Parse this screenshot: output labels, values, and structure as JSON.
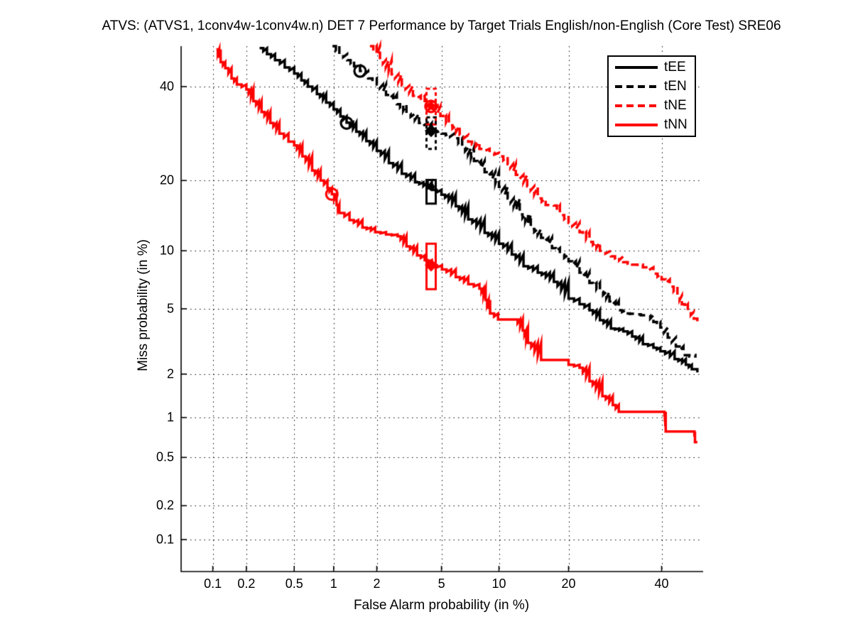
{
  "title": "ATVS: (ATVS1, 1conv4w-1conv4w.n) DET 7 Performance by Target Trials English/non-English (Core Test) SRE06",
  "legend": {
    "items": [
      "tEE",
      "tEN",
      "tNE",
      "tNN"
    ]
  },
  "chart_data": {
    "type": "line",
    "subtype": "DET-curve (normal-deviate / probit scale on both axes)",
    "title": "ATVS: (ATVS1, 1conv4w-1conv4w.n) DET 7 Performance by Target Trials English/non-English (Core Test) SRE06",
    "xlabel": "False Alarm probability (in %)",
    "ylabel": "Miss probability (in %)",
    "x_ticks": [
      0.1,
      0.2,
      0.5,
      1,
      2,
      5,
      10,
      20,
      40
    ],
    "y_ticks": [
      0.1,
      0.2,
      0.5,
      1,
      2,
      5,
      10,
      20,
      40
    ],
    "axis_range_percent": [
      0.05,
      50
    ],
    "grid": "dotted",
    "legend_position": "top-right",
    "series": [
      {
        "name": "tEE",
        "color": "#000000",
        "dash": "solid",
        "points": [
          [
            0.26,
            49.5
          ],
          [
            0.3,
            48
          ],
          [
            0.35,
            46.5
          ],
          [
            0.42,
            44.7
          ],
          [
            0.5,
            43.2
          ],
          [
            0.57,
            41.5
          ],
          [
            0.64,
            40
          ],
          [
            0.75,
            38.2
          ],
          [
            0.88,
            36.2
          ],
          [
            1.0,
            34.6
          ],
          [
            1.12,
            33
          ],
          [
            1.24,
            31.6
          ],
          [
            1.45,
            29.6
          ],
          [
            1.7,
            27.6
          ],
          [
            2.0,
            25.6
          ],
          [
            2.4,
            23.2
          ],
          [
            2.9,
            21.2
          ],
          [
            3.5,
            19.7
          ],
          [
            4.4,
            18.4
          ],
          [
            5.0,
            17.6
          ],
          [
            6.0,
            15.8
          ],
          [
            7.0,
            13.9
          ],
          [
            8.5,
            12.1
          ],
          [
            10.0,
            10.8
          ],
          [
            11.5,
            9.6
          ],
          [
            13.0,
            8.4
          ],
          [
            15.0,
            7.8
          ],
          [
            17.5,
            7.0
          ],
          [
            20.0,
            5.7
          ],
          [
            22.0,
            5.3
          ],
          [
            23.9,
            4.9
          ],
          [
            26.0,
            4.3
          ],
          [
            28.3,
            3.85
          ],
          [
            31.0,
            3.7
          ],
          [
            33.0,
            3.45
          ],
          [
            35.5,
            3.1
          ],
          [
            38.0,
            2.95
          ],
          [
            39.7,
            2.8
          ],
          [
            43.2,
            2.5
          ],
          [
            46.0,
            2.3
          ],
          [
            47.5,
            2.15
          ],
          [
            48.9,
            2.05
          ]
        ]
      },
      {
        "name": "tEN",
        "color": "#000000",
        "dash": "dashed",
        "points": [
          [
            0.98,
            50
          ],
          [
            1.1,
            48
          ],
          [
            1.25,
            46.5
          ],
          [
            1.4,
            45
          ],
          [
            1.54,
            43.8
          ],
          [
            1.75,
            42
          ],
          [
            2.0,
            40.5
          ],
          [
            2.3,
            38
          ],
          [
            2.7,
            35.8
          ],
          [
            3.1,
            33.6
          ],
          [
            3.7,
            31.5
          ],
          [
            4.4,
            29.8
          ],
          [
            5.0,
            29.2
          ],
          [
            5.9,
            28.2
          ],
          [
            6.5,
            26.2
          ],
          [
            7.5,
            23.6
          ],
          [
            8.5,
            21.5
          ],
          [
            10.0,
            18.9
          ],
          [
            11.0,
            17.0
          ],
          [
            12.5,
            14.6
          ],
          [
            14.0,
            12.6
          ],
          [
            15.5,
            11.5
          ],
          [
            17.2,
            10.3
          ],
          [
            18.5,
            9.6
          ],
          [
            20.0,
            8.9
          ],
          [
            22.0,
            7.8
          ],
          [
            23.9,
            6.9
          ],
          [
            26.0,
            6.2
          ],
          [
            28.0,
            5.5
          ],
          [
            30.0,
            4.9
          ],
          [
            31.5,
            4.7
          ],
          [
            33.5,
            4.65
          ],
          [
            35.0,
            4.6
          ],
          [
            36.5,
            4.6
          ],
          [
            38.0,
            4.2
          ],
          [
            39.7,
            3.9
          ],
          [
            41.5,
            3.4
          ],
          [
            43.5,
            3.0
          ],
          [
            45.4,
            2.65
          ],
          [
            48.4,
            2.55
          ]
        ]
      },
      {
        "name": "tNE",
        "color": "#ff0000",
        "dash": "dashed",
        "points": [
          [
            1.8,
            50
          ],
          [
            2.1,
            46.5
          ],
          [
            2.5,
            43
          ],
          [
            2.9,
            40.2
          ],
          [
            3.4,
            37.8
          ],
          [
            4.0,
            36.2
          ],
          [
            4.4,
            35.3
          ],
          [
            4.93,
            33.1
          ],
          [
            5.5,
            31
          ],
          [
            6.3,
            28.9
          ],
          [
            7.0,
            27.5
          ],
          [
            8.0,
            26
          ],
          [
            9.0,
            25.2
          ],
          [
            10.0,
            24.5
          ],
          [
            11.0,
            23
          ],
          [
            12.0,
            21
          ],
          [
            13.5,
            19
          ],
          [
            15.0,
            17
          ],
          [
            16.2,
            16
          ],
          [
            17.5,
            15.9
          ],
          [
            18.5,
            14.5
          ],
          [
            20.0,
            13.4
          ],
          [
            22.0,
            12.2
          ],
          [
            23.9,
            11
          ],
          [
            26.0,
            10
          ],
          [
            28.3,
            9.4
          ],
          [
            31.0,
            8.8
          ],
          [
            33.0,
            8.55
          ],
          [
            35.5,
            8.3
          ],
          [
            38.0,
            7.7
          ],
          [
            40.0,
            7.2
          ],
          [
            42.0,
            6.6
          ],
          [
            43.9,
            5.9
          ],
          [
            45.0,
            5.3
          ],
          [
            46.5,
            4.8
          ],
          [
            48.0,
            4.4
          ],
          [
            48.9,
            4.15
          ]
        ]
      },
      {
        "name": "tNN",
        "color": "#ff0000",
        "dash": "solid",
        "points": [
          [
            0.108,
            49.2
          ],
          [
            0.118,
            46
          ],
          [
            0.13,
            44.5
          ],
          [
            0.148,
            42
          ],
          [
            0.165,
            40.5
          ],
          [
            0.2,
            39.3
          ],
          [
            0.23,
            36.5
          ],
          [
            0.27,
            34
          ],
          [
            0.32,
            31.5
          ],
          [
            0.38,
            29.2
          ],
          [
            0.45,
            27.5
          ],
          [
            0.5,
            26.7
          ],
          [
            0.58,
            24.5
          ],
          [
            0.69,
            21.8
          ],
          [
            0.8,
            20
          ],
          [
            0.9,
            18.7
          ],
          [
            0.97,
            17.7
          ],
          [
            1.05,
            16
          ],
          [
            1.1,
            14.8
          ],
          [
            1.3,
            13.8
          ],
          [
            1.6,
            12.8
          ],
          [
            1.95,
            12.2
          ],
          [
            2.3,
            11.9
          ],
          [
            2.73,
            11.7
          ],
          [
            3.1,
            10.5
          ],
          [
            3.6,
            9.5
          ],
          [
            4.0,
            9.0
          ],
          [
            4.4,
            8.5
          ],
          [
            5.03,
            8.1
          ],
          [
            6.0,
            7.4
          ],
          [
            7.0,
            6.8
          ],
          [
            8.0,
            6.45
          ],
          [
            8.6,
            5.6
          ],
          [
            9.05,
            4.7
          ],
          [
            9.9,
            4.35
          ],
          [
            11.9,
            4.35
          ],
          [
            12.9,
            3.75
          ],
          [
            13.6,
            3.15
          ],
          [
            15.5,
            2.47
          ],
          [
            19.5,
            2.47
          ],
          [
            20.0,
            2.3
          ],
          [
            22.0,
            2.2
          ],
          [
            23.9,
            1.79
          ],
          [
            26.5,
            1.42
          ],
          [
            28.7,
            1.23
          ],
          [
            30.0,
            1.1
          ],
          [
            40.6,
            1.1
          ],
          [
            41.0,
            0.79
          ],
          [
            48.0,
            0.79
          ],
          [
            48.3,
            0.656
          ],
          [
            48.9,
            0.656
          ]
        ]
      }
    ],
    "markers": {
      "min_dcf_circles": [
        {
          "series": "tEE",
          "color": "#000000",
          "fa": 1.24,
          "miss": 31.5
        },
        {
          "series": "tEN",
          "color": "#000000",
          "fa": 1.54,
          "miss": 43.8
        },
        {
          "series": "tNE",
          "color": "#ff0000",
          "fa": 4.35,
          "miss": 35.3
        },
        {
          "series": "tNN",
          "color": "#ff0000",
          "fa": 0.97,
          "miss": 17.7
        }
      ],
      "actual_dcf_boxes": [
        {
          "series": "tNE",
          "color": "#ff0000",
          "dash": "dashed",
          "fa": 4.36,
          "miss_low": 31.2,
          "miss_high": 39.5,
          "miss_point": 35.3,
          "point_shape": "star"
        },
        {
          "series": "tEN",
          "color": "#000000",
          "dash": "dashed",
          "fa": 4.36,
          "miss_low": 26.0,
          "miss_high": 32.8,
          "miss_point": 29.8,
          "point_shape": "diamond"
        },
        {
          "series": "tEE",
          "color": "#000000",
          "dash": "solid",
          "fa": 4.36,
          "miss_low": 16.2,
          "miss_high": 20.1,
          "miss_point": 18.9,
          "point_shape": "dot"
        },
        {
          "series": "tNN",
          "color": "#ff0000",
          "dash": "solid",
          "fa": 4.36,
          "miss_low": 6.4,
          "miss_high": 10.8,
          "miss_point": 8.5,
          "point_shape": "diamond"
        }
      ]
    }
  }
}
